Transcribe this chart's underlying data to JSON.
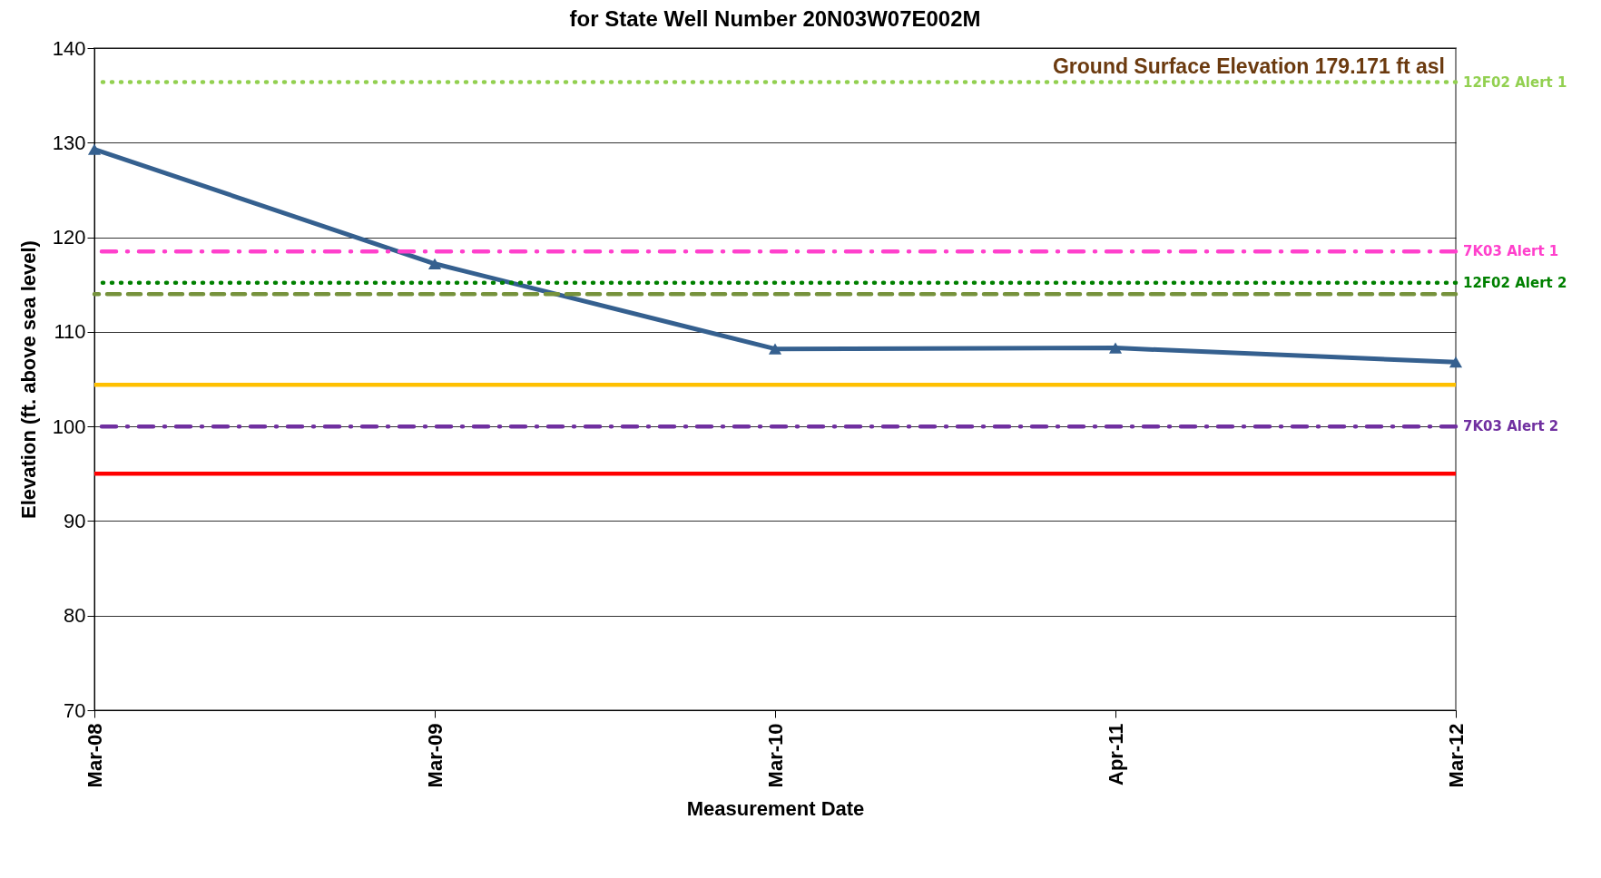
{
  "chart_data": {
    "type": "line",
    "title": "for State Well Number 20N03W07E002M",
    "xlabel": "Measurement Date",
    "ylabel": "Elevation (ft. above sea level)",
    "categories": [
      "Mar-08",
      "Mar-09",
      "Mar-10",
      "Apr-11",
      "Mar-12"
    ],
    "series": [
      {
        "color": "#35608f",
        "values": [
          129.3,
          117.2,
          108.2,
          108.3,
          106.8
        ]
      }
    ],
    "marker": "triangle",
    "ylim": [
      70,
      140
    ],
    "yticks": [
      70,
      80,
      90,
      100,
      110,
      120,
      130,
      140
    ],
    "grid": "y",
    "ref_lines": [
      {
        "axis": "y",
        "value": 136.4,
        "label": "12F02 Alert 1",
        "color": "#92d050",
        "line_style": "dotted"
      },
      {
        "axis": "y",
        "value": 118.5,
        "label": "7K03 Alert 1",
        "color": "#ff40cc",
        "line_style": "dashdot"
      },
      {
        "axis": "y",
        "value": 115.2,
        "label": "12F02 Alert 2",
        "color": "#008000",
        "line_style": "dotted"
      },
      {
        "axis": "y",
        "value": 114,
        "color": "#76923c",
        "line_style": "dashed"
      },
      {
        "axis": "y",
        "value": 104.4,
        "color": "#ffc000",
        "line_style": "solid"
      },
      {
        "axis": "y",
        "value": 100,
        "label": "7K03 Alert 2",
        "color": "#7030a0",
        "line_style": "dashdot"
      },
      {
        "axis": "y",
        "value": 95,
        "color": "#ff0000",
        "line_style": "solid"
      }
    ],
    "annotations": [
      "Ground Surface Elevation 179.171 ft asl"
    ]
  }
}
